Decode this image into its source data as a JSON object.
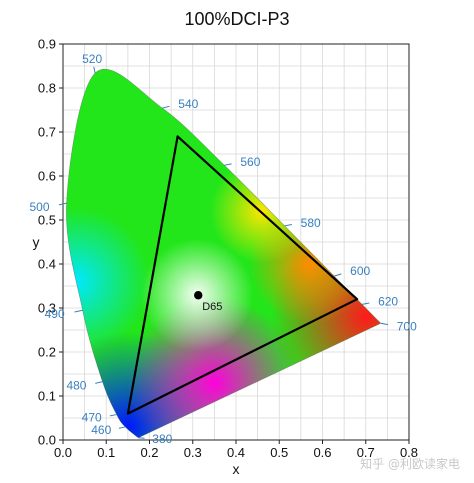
{
  "chart_data": {
    "type": "scatter",
    "title": "100%DCI-P3",
    "xlabel": "x",
    "ylabel": "y",
    "xlim": [
      0.0,
      0.8
    ],
    "ylim": [
      0.0,
      0.9
    ],
    "xticks": [
      "0.0",
      "0.1",
      "0.2",
      "0.3",
      "0.4",
      "0.5",
      "0.6",
      "0.7",
      "0.8"
    ],
    "yticks": [
      "0.0",
      "0.1",
      "0.2",
      "0.3",
      "0.4",
      "0.5",
      "0.6",
      "0.7",
      "0.8",
      "0.9"
    ],
    "grid": true,
    "spectral_locus": [
      {
        "wavelength": "380",
        "x": 0.1741,
        "y": 0.005
      },
      {
        "wavelength": "460",
        "x": 0.144,
        "y": 0.0297
      },
      {
        "wavelength": "470",
        "x": 0.1241,
        "y": 0.0578
      },
      {
        "wavelength": "480",
        "x": 0.0913,
        "y": 0.1327
      },
      {
        "wavelength": "490",
        "x": 0.0454,
        "y": 0.295
      },
      {
        "wavelength": "500",
        "x": 0.0082,
        "y": 0.5384
      },
      {
        "wavelength": "520",
        "x": 0.0743,
        "y": 0.8338
      },
      {
        "wavelength": "540",
        "x": 0.2296,
        "y": 0.7543
      },
      {
        "wavelength": "560",
        "x": 0.3731,
        "y": 0.6245
      },
      {
        "wavelength": "580",
        "x": 0.5125,
        "y": 0.4866
      },
      {
        "wavelength": "600",
        "x": 0.627,
        "y": 0.3725
      },
      {
        "wavelength": "620",
        "x": 0.6915,
        "y": 0.3083
      },
      {
        "wavelength": "700",
        "x": 0.7347,
        "y": 0.2653
      }
    ],
    "gamut_triangle": [
      {
        "x": 0.68,
        "y": 0.32
      },
      {
        "x": 0.265,
        "y": 0.69
      },
      {
        "x": 0.15,
        "y": 0.06
      }
    ],
    "white_point": {
      "label": "D65",
      "x": 0.3127,
      "y": 0.329
    }
  },
  "watermark": "知乎 @利欧读家电",
  "colors": {
    "wavelength_label": "#3a80c0",
    "grid": "#d8d8d8",
    "axis": "#222222",
    "text": "#111111"
  }
}
